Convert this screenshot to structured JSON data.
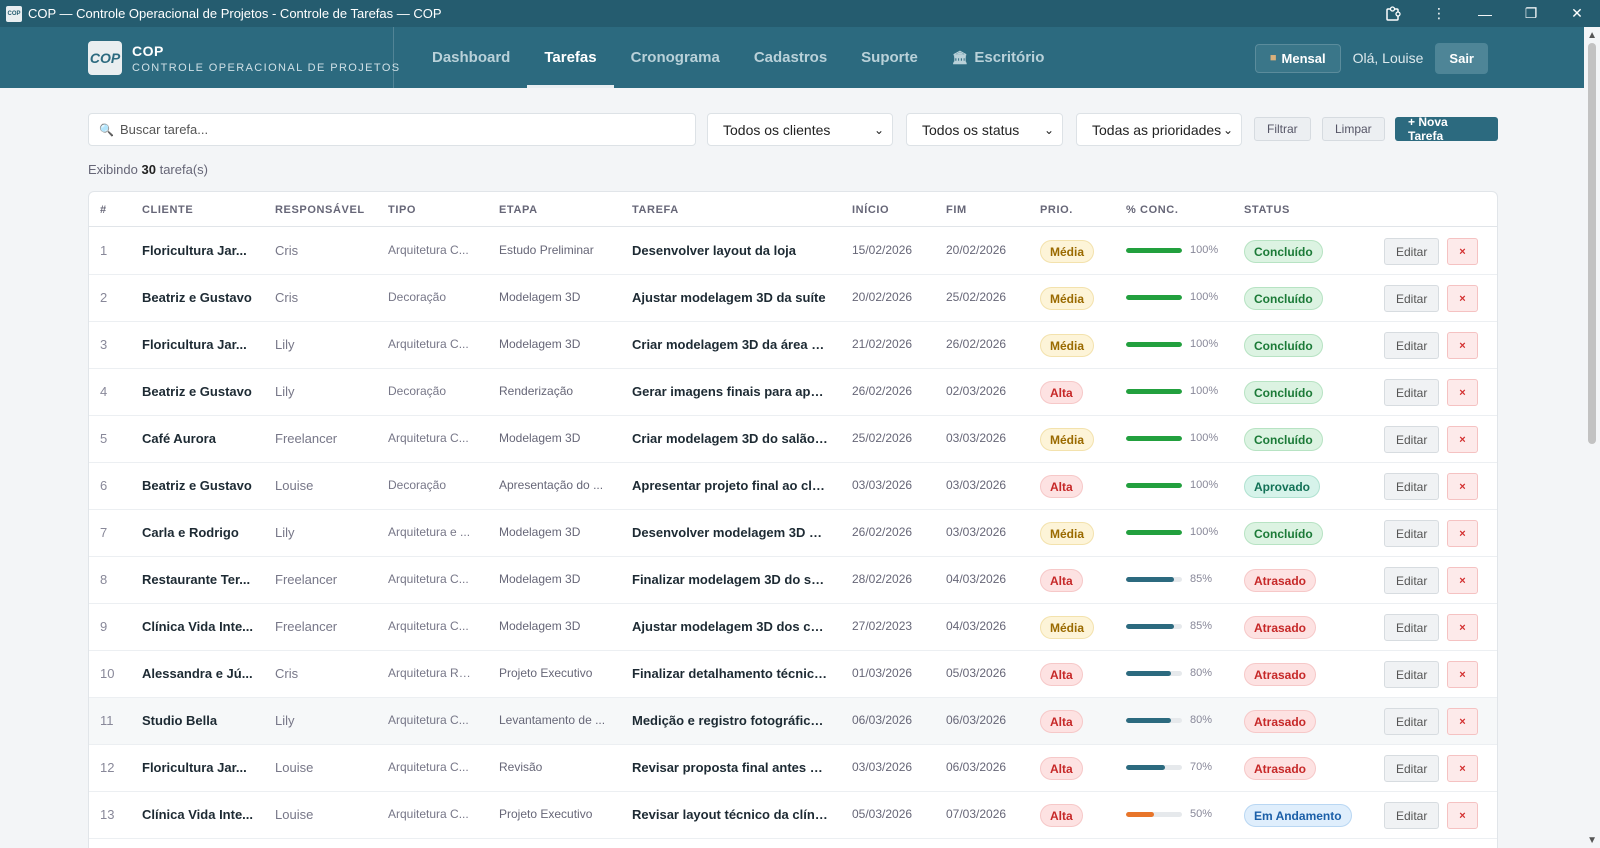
{
  "window": {
    "title": "COP — Controle Operacional de Projetos - Controle de Tarefas — COP",
    "app_icon": "COP"
  },
  "brand": {
    "logo": "COP",
    "name": "COP",
    "subtitle": "CONTROLE OPERACIONAL DE PROJETOS"
  },
  "nav": {
    "items": [
      {
        "label": "Dashboard"
      },
      {
        "label": "Tarefas"
      },
      {
        "label": "Cronograma"
      },
      {
        "label": "Cadastros"
      },
      {
        "label": "Suporte"
      },
      {
        "label": "Escritório"
      }
    ],
    "active": "Tarefas",
    "mensal_label": "Mensal",
    "greeting": "Olá, Louise",
    "logout_label": "Sair"
  },
  "filters": {
    "search_placeholder": "Buscar tarefa...",
    "clients": "Todos os clientes",
    "status": "Todos os status",
    "priorities": "Todas as prioridades",
    "filter_label": "Filtrar",
    "clear_label": "Limpar",
    "new_task_label": "+ Nova Tarefa"
  },
  "summary": {
    "prefix": "Exibindo",
    "count": "30",
    "suffix": "tarefa(s)"
  },
  "table": {
    "headers": [
      "#",
      "CLIENTE",
      "RESPONSÁVEL",
      "TIPO",
      "ETAPA",
      "TAREFA",
      "INÍCIO",
      "FIM",
      "PRIO.",
      "% CONC.",
      "STATUS"
    ],
    "edit_label": "Editar",
    "delete_label": "×",
    "rows": [
      {
        "n": "1",
        "cliente": "Floricultura Jar...",
        "resp": "Cris",
        "tipo": "Arquitetura C...",
        "etapa": "Estudo Preliminar",
        "tarefa": "Desenvolver layout da loja",
        "inicio": "15/02/2026",
        "fim": "20/02/2026",
        "prio": "Média",
        "pct": "100%",
        "progress": 1.0,
        "status": "Concluído"
      },
      {
        "n": "2",
        "cliente": "Beatriz e Gustavo",
        "resp": "Cris",
        "tipo": "Decoração",
        "etapa": "Modelagem 3D",
        "tarefa": "Ajustar modelagem 3D da suíte",
        "inicio": "20/02/2026",
        "fim": "25/02/2026",
        "prio": "Média",
        "pct": "100%",
        "progress": 1.0,
        "status": "Concluído"
      },
      {
        "n": "3",
        "cliente": "Floricultura Jar...",
        "resp": "Lily",
        "tipo": "Arquitetura C...",
        "etapa": "Modelagem 3D",
        "tarefa": "Criar modelagem 3D da área d...",
        "inicio": "21/02/2026",
        "fim": "26/02/2026",
        "prio": "Média",
        "pct": "100%",
        "progress": 1.0,
        "status": "Concluído"
      },
      {
        "n": "4",
        "cliente": "Beatriz e Gustavo",
        "resp": "Lily",
        "tipo": "Decoração",
        "etapa": "Renderização",
        "tarefa": "Gerar imagens finais para apre...",
        "inicio": "26/02/2026",
        "fim": "02/03/2026",
        "prio": "Alta",
        "pct": "100%",
        "progress": 1.0,
        "status": "Concluído"
      },
      {
        "n": "5",
        "cliente": "Café Aurora",
        "resp": "Freelancer",
        "tipo": "Arquitetura C...",
        "etapa": "Modelagem 3D",
        "tarefa": "Criar modelagem 3D do salão ...",
        "inicio": "25/02/2026",
        "fim": "03/03/2026",
        "prio": "Média",
        "pct": "100%",
        "progress": 1.0,
        "status": "Concluído"
      },
      {
        "n": "6",
        "cliente": "Beatriz e Gustavo",
        "resp": "Louise",
        "tipo": "Decoração",
        "etapa": "Apresentação do ...",
        "tarefa": "Apresentar projeto final ao clie...",
        "inicio": "03/03/2026",
        "fim": "03/03/2026",
        "prio": "Alta",
        "pct": "100%",
        "progress": 1.0,
        "status": "Aprovado"
      },
      {
        "n": "7",
        "cliente": "Carla e Rodrigo",
        "resp": "Lily",
        "tipo": "Arquitetura e ...",
        "etapa": "Modelagem 3D",
        "tarefa": "Desenvolver modelagem 3D da...",
        "inicio": "26/02/2026",
        "fim": "03/03/2026",
        "prio": "Média",
        "pct": "100%",
        "progress": 1.0,
        "status": "Concluído"
      },
      {
        "n": "8",
        "cliente": "Restaurante Ter...",
        "resp": "Freelancer",
        "tipo": "Arquitetura C...",
        "etapa": "Modelagem 3D",
        "tarefa": "Finalizar modelagem 3D do salão",
        "inicio": "28/02/2026",
        "fim": "04/03/2026",
        "prio": "Alta",
        "pct": "85%",
        "progress": 0.85,
        "status": "Atrasado"
      },
      {
        "n": "9",
        "cliente": "Clínica Vida Inte...",
        "resp": "Freelancer",
        "tipo": "Arquitetura C...",
        "etapa": "Modelagem 3D",
        "tarefa": "Ajustar modelagem 3D dos con...",
        "inicio": "27/02/2023",
        "fim": "04/03/2026",
        "prio": "Média",
        "pct": "85%",
        "progress": 0.85,
        "status": "Atrasado"
      },
      {
        "n": "10",
        "cliente": "Alessandra e Jú...",
        "resp": "Cris",
        "tipo": "Arquitetura Re...",
        "etapa": "Projeto Executivo",
        "tarefa": "Finalizar detalhamento técnico ...",
        "inicio": "01/03/2026",
        "fim": "05/03/2026",
        "prio": "Alta",
        "pct": "80%",
        "progress": 0.8,
        "status": "Atrasado"
      },
      {
        "n": "11",
        "cliente": "Studio Bella",
        "resp": "Lily",
        "tipo": "Arquitetura C...",
        "etapa": "Levantamento de ...",
        "tarefa": "Medição e registro fotográfico ...",
        "inicio": "06/03/2026",
        "fim": "06/03/2026",
        "prio": "Alta",
        "pct": "80%",
        "progress": 0.8,
        "status": "Atrasado"
      },
      {
        "n": "12",
        "cliente": "Floricultura Jar...",
        "resp": "Louise",
        "tipo": "Arquitetura C...",
        "etapa": "Revisão",
        "tarefa": "Revisar proposta final antes da...",
        "inicio": "03/03/2026",
        "fim": "06/03/2026",
        "prio": "Alta",
        "pct": "70%",
        "progress": 0.7,
        "status": "Atrasado"
      },
      {
        "n": "13",
        "cliente": "Clínica Vida Inte...",
        "resp": "Louise",
        "tipo": "Arquitetura C...",
        "etapa": "Projeto Executivo",
        "tarefa": "Revisar layout técnico da clínica",
        "inicio": "05/03/2026",
        "fim": "07/03/2026",
        "prio": "Alta",
        "pct": "50%",
        "progress": 0.5,
        "status": "Em Andamento"
      }
    ]
  },
  "colors": {
    "header_bg": "#2c6a7f",
    "progress_done": "#22a03e",
    "progress_partial": "#2c6a7f",
    "progress_half": "#e8752a"
  }
}
